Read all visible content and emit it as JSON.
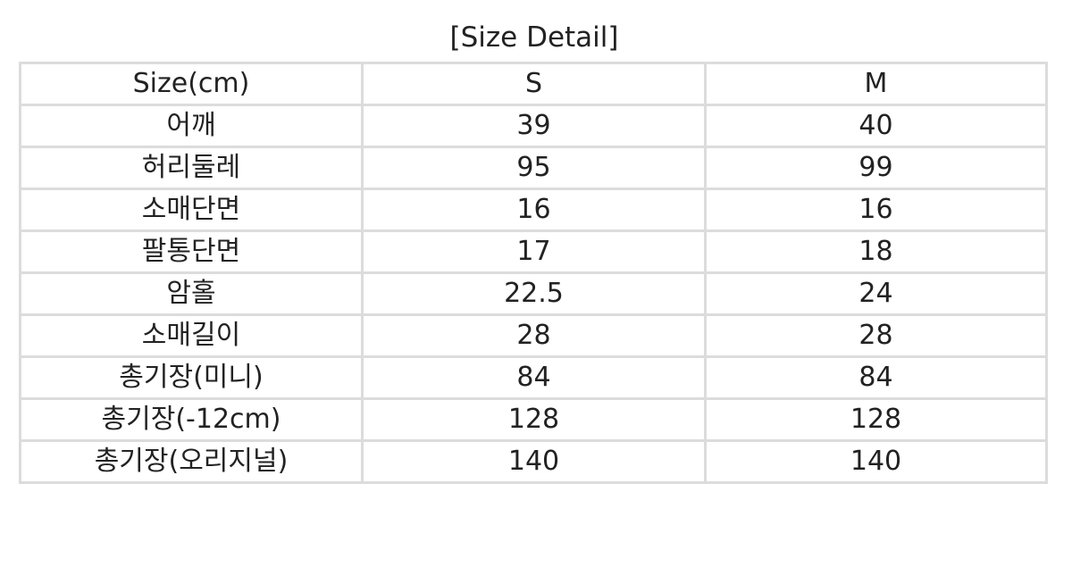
{
  "title": "[Size Detail]",
  "table": {
    "header": [
      "Size(cm)",
      "S",
      "M"
    ],
    "rows": [
      [
        "어깨",
        "39",
        "40"
      ],
      [
        "허리둘레",
        "95",
        "99"
      ],
      [
        "소매단면",
        "16",
        "16"
      ],
      [
        "팔통단면",
        "17",
        "18"
      ],
      [
        "암홀",
        "22.5",
        "24"
      ],
      [
        "소매길이",
        "28",
        "28"
      ],
      [
        "총기장(미니)",
        "84",
        "84"
      ],
      [
        "총기장(-12cm)",
        "128",
        "128"
      ],
      [
        "총기장(오리지널)",
        "140",
        "140"
      ]
    ]
  }
}
